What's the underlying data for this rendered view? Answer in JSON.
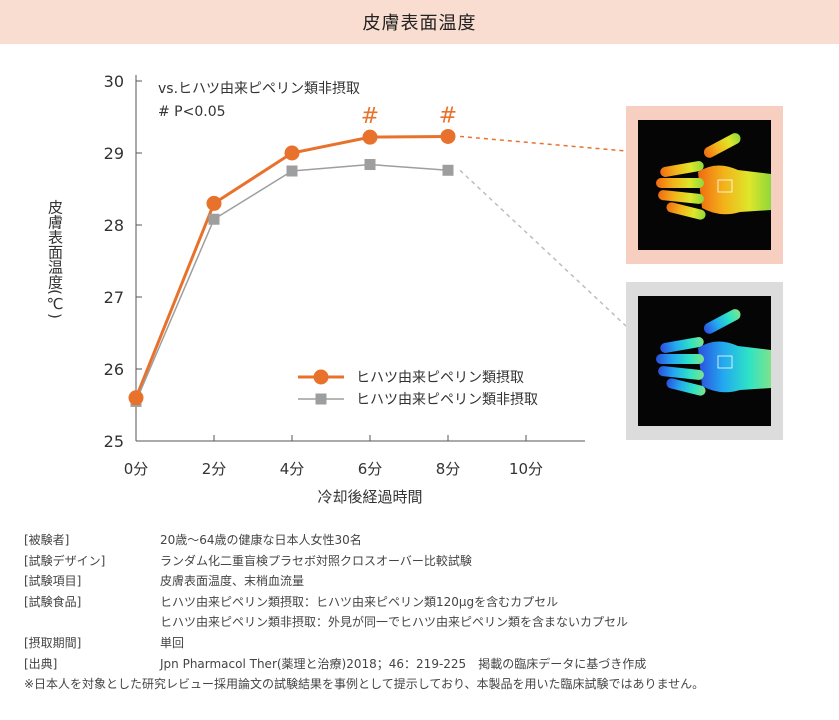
{
  "header": {
    "title": "皮膚表面温度"
  },
  "chart_data": {
    "type": "line",
    "title": "",
    "xlabel": "冷却後経過時間",
    "ylabel": "皮膚表面温度(℃)",
    "ylim": [
      25,
      30
    ],
    "yticks": [
      "25",
      "26",
      "27",
      "28",
      "29",
      "30"
    ],
    "categories": [
      "0分",
      "2分",
      "4分",
      "6分",
      "8分",
      "10分"
    ],
    "x": [
      0,
      2.5,
      5,
      7.5,
      10
    ],
    "series": [
      {
        "name": "ヒハツ由来ピペリン類摂取",
        "values": [
          25.6,
          28.3,
          29.0,
          29.22,
          29.23
        ],
        "color": "#e8722c",
        "marker": "circle"
      },
      {
        "name": "ヒハツ由来ピペリン類非摂取",
        "values": [
          25.55,
          28.08,
          28.75,
          28.84,
          28.76
        ],
        "color": "#9e9e9e",
        "marker": "square"
      }
    ],
    "annotations": {
      "comparison": "vs.ヒハツ由来ピペリン類非摂取",
      "significance": "# P<0.05",
      "marks": [
        {
          "x": 7.5,
          "label": "#"
        },
        {
          "x": 10,
          "label": "#"
        }
      ]
    },
    "legend": "bottom-right",
    "grid": false
  },
  "notes": [
    {
      "label": "[被験者]",
      "value": "20歳～64歳の健康な日本人女性30名"
    },
    {
      "label": "[試験デザイン]",
      "value": "ランダム化二重盲検プラセボ対照クロスオーバー比較試験"
    },
    {
      "label": "[試験項目]",
      "value": "皮膚表面温度、末梢血流量"
    },
    {
      "label": "[試験食品]",
      "value": "ヒハツ由来ピペリン類摂取：ヒハツ由来ピペリン類120μgを含むカプセル"
    },
    {
      "label": "",
      "value": "ヒハツ由来ピペリン類非摂取：外見が同一でヒハツ由来ピペリン類を含まないカプセル"
    },
    {
      "label": "[摂取期間]",
      "value": "単回"
    },
    {
      "label": "[出典]",
      "value": "Jpn Pharmacol Ther(薬理と治療)2018；46：219-225　掲載の臨床データに基づき作成"
    }
  ],
  "footnote": "※日本人を対象とした研究レビュー採用論文の試験結果を事例として提示しており、本製品を用いた臨床試験ではありません。"
}
